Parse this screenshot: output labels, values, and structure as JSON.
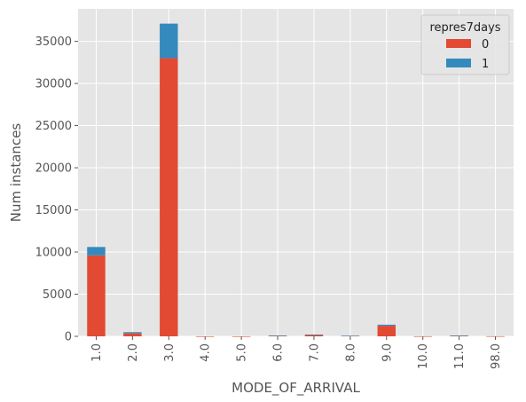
{
  "chart_data": {
    "type": "bar",
    "stacked": true,
    "xlabel": "MODE_OF_ARRIVAL",
    "ylabel": "Num instances",
    "categories": [
      "1.0",
      "2.0",
      "3.0",
      "4.0",
      "5.0",
      "6.0",
      "7.0",
      "8.0",
      "9.0",
      "10.0",
      "11.0",
      "98.0"
    ],
    "series": [
      {
        "name": "0",
        "color": "#E24A33",
        "values": [
          9600,
          350,
          33000,
          5,
          5,
          80,
          180,
          60,
          1250,
          10,
          80,
          15
        ]
      },
      {
        "name": "1",
        "color": "#348ABD",
        "values": [
          1000,
          150,
          4100,
          0,
          0,
          10,
          30,
          10,
          130,
          0,
          10,
          0
        ]
      }
    ],
    "ylim": [
      0,
      38850
    ],
    "yticks": [
      0,
      5000,
      10000,
      15000,
      20000,
      25000,
      30000,
      35000
    ],
    "grid": true,
    "legend": {
      "title": "repres7days",
      "position": "top-right"
    },
    "background": "#E5E5E5"
  }
}
